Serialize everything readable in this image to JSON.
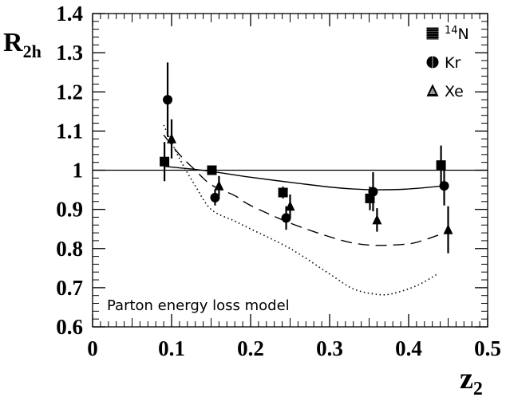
{
  "chart_data": {
    "type": "scatter",
    "xlabel": "z",
    "xlabel_sub": "2",
    "ylabel": "R",
    "ylabel_sub": "2h",
    "xlim": [
      0,
      0.5
    ],
    "ylim": [
      0.6,
      1.4
    ],
    "x_ticks": [
      "0",
      "0.1",
      "0.2",
      "0.3",
      "0.4",
      "0.5"
    ],
    "y_ticks": [
      "0.6",
      "0.7",
      "0.8",
      "0.9",
      "1",
      "1.1",
      "1.2",
      "1.3",
      "1.4"
    ],
    "annotation": "Parton energy loss model",
    "legend_position": "top-right",
    "reference_line": 1.0,
    "series": [
      {
        "name": "N",
        "name_sup": "14",
        "marker": "square",
        "points": [
          {
            "x": 0.091,
            "y": 1.022,
            "err": 0.05
          },
          {
            "x": 0.151,
            "y": 1.0,
            "err": 0.01
          },
          {
            "x": 0.241,
            "y": 0.943,
            "err": 0.015
          },
          {
            "x": 0.351,
            "y": 0.928,
            "err": 0.03
          },
          {
            "x": 0.441,
            "y": 1.013,
            "err": 0.05
          }
        ]
      },
      {
        "name": "Kr",
        "marker": "circle",
        "points": [
          {
            "x": 0.095,
            "y": 1.18,
            "err": 0.095
          },
          {
            "x": 0.155,
            "y": 0.93,
            "err": 0.02
          },
          {
            "x": 0.245,
            "y": 0.878,
            "err": 0.03
          },
          {
            "x": 0.355,
            "y": 0.945,
            "err": 0.05
          },
          {
            "x": 0.445,
            "y": 0.96,
            "err": 0.05
          }
        ]
      },
      {
        "name": "Xe",
        "marker": "triangle",
        "points": [
          {
            "x": 0.1,
            "y": 1.08,
            "err": 0.05
          },
          {
            "x": 0.16,
            "y": 0.96,
            "err": 0.025
          },
          {
            "x": 0.25,
            "y": 0.908,
            "err": 0.03
          },
          {
            "x": 0.36,
            "y": 0.873,
            "err": 0.03
          },
          {
            "x": 0.45,
            "y": 0.848,
            "err": 0.06
          }
        ]
      }
    ],
    "curves": [
      {
        "style": "solid",
        "x": [
          0.09,
          0.11,
          0.13,
          0.15,
          0.18,
          0.2,
          0.25,
          0.3,
          0.33,
          0.36,
          0.4,
          0.445
        ],
        "y": [
          1.01,
          1.006,
          1.002,
          0.997,
          0.988,
          0.982,
          0.969,
          0.957,
          0.952,
          0.95,
          0.952,
          0.96
        ]
      },
      {
        "style": "dashed",
        "x": [
          0.09,
          0.11,
          0.13,
          0.15,
          0.18,
          0.2,
          0.25,
          0.3,
          0.33,
          0.36,
          0.4,
          0.42,
          0.445
        ],
        "y": [
          1.09,
          1.04,
          1.0,
          0.963,
          0.935,
          0.91,
          0.865,
          0.83,
          0.814,
          0.808,
          0.812,
          0.822,
          0.84
        ]
      },
      {
        "style": "dotted",
        "x": [
          0.09,
          0.11,
          0.13,
          0.15,
          0.18,
          0.2,
          0.25,
          0.3,
          0.33,
          0.36,
          0.38,
          0.41,
          0.435
        ],
        "y": [
          1.115,
          1.03,
          0.96,
          0.9,
          0.87,
          0.85,
          0.8,
          0.735,
          0.697,
          0.683,
          0.685,
          0.705,
          0.733
        ]
      }
    ]
  }
}
